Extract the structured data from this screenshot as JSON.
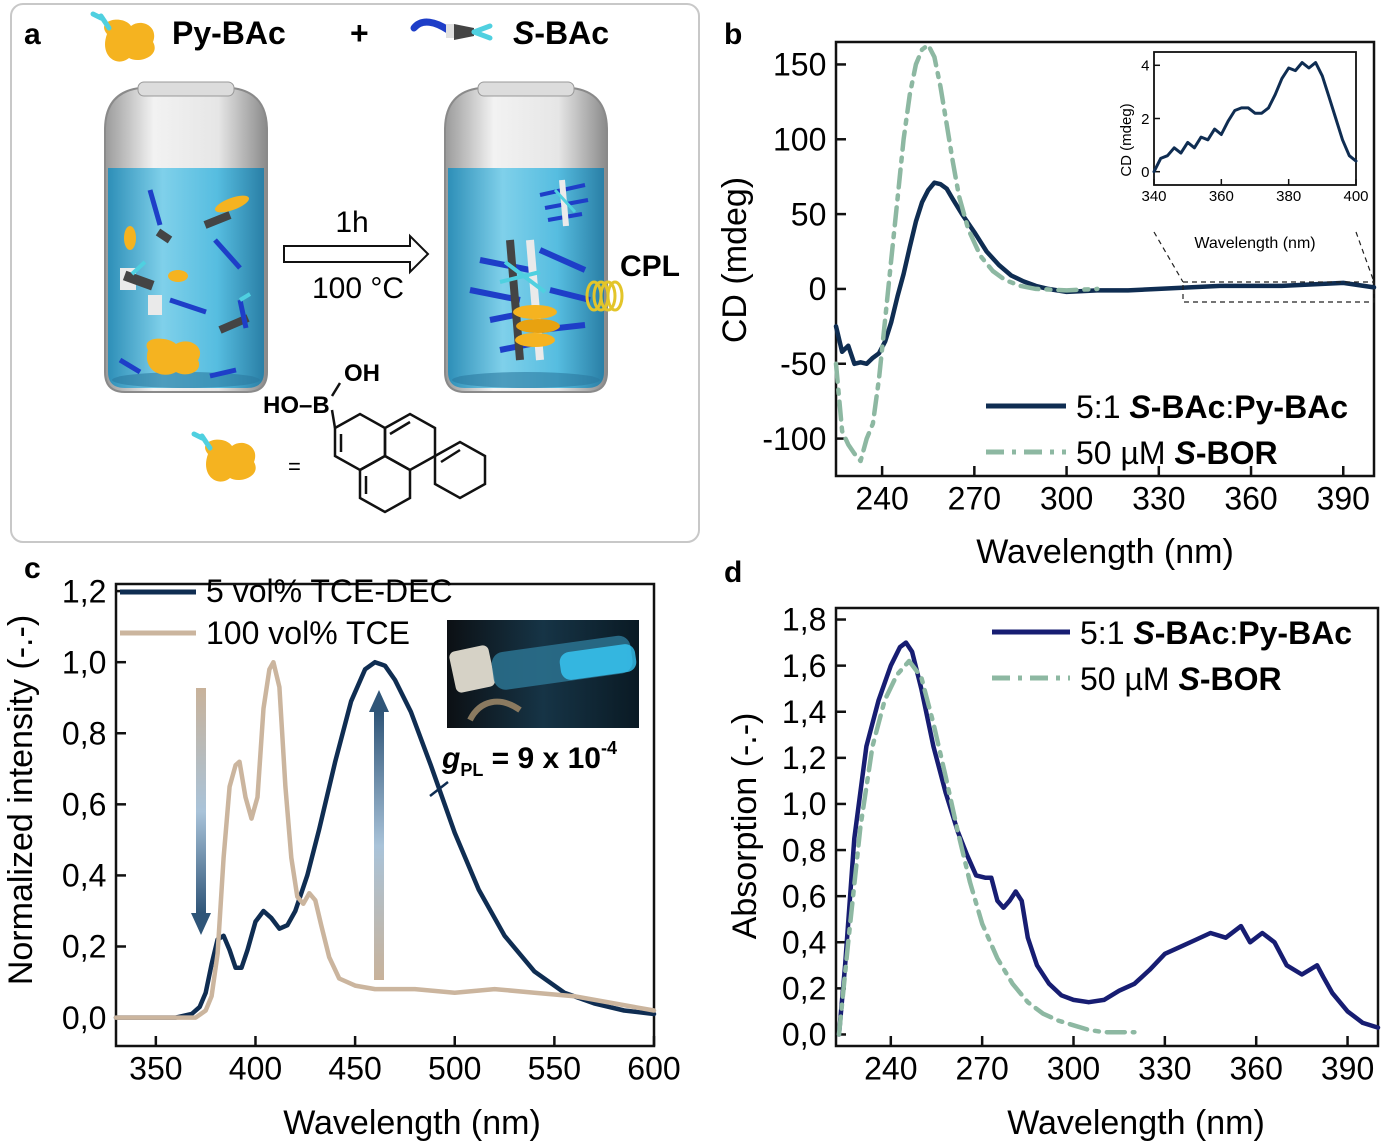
{
  "panel_a": {
    "letter": "a",
    "reagent1": "Py-BAc",
    "plus": "+",
    "reagent2_italic": "S",
    "reagent2_rest": "-BAc",
    "arrow_top": "1h",
    "arrow_bottom": "100 °C",
    "cpl": "CPL",
    "equals": "=",
    "oh": "OH",
    "hob": "HO–B",
    "colors": {
      "vial_liquid": "#3fb2d9",
      "pyrene_blob": "#f5b320",
      "box_border": "#c8c8c8"
    }
  },
  "chart_data": [
    {
      "id": "b",
      "letter": "b",
      "type": "line",
      "xlabel": "Wavelength (nm)",
      "ylabel": "CD (mdeg)",
      "xlim": [
        225,
        400
      ],
      "ylim": [
        -125,
        165
      ],
      "xticks": [
        240,
        270,
        300,
        330,
        360,
        390
      ],
      "yticks": [
        -100,
        -50,
        0,
        50,
        100,
        150
      ],
      "legend": "bottom-right",
      "series": [
        {
          "name_prefix": "5:1 ",
          "name_b1": "S",
          "name_b2": "-BAc",
          "name_sep": ":",
          "name_b3": "Py-BAc",
          "color": "#0f2d52",
          "style": "solid",
          "x": [
            225,
            227,
            229,
            231,
            233,
            235,
            237,
            239,
            241,
            243,
            245,
            247,
            249,
            251,
            253,
            255,
            257,
            259,
            261,
            263,
            266,
            270,
            274,
            278,
            282,
            286,
            290,
            294,
            300,
            310,
            320,
            330,
            340,
            350,
            360,
            370,
            380,
            390,
            400
          ],
          "y": [
            -25,
            -42,
            -38,
            -50,
            -49,
            -50,
            -46,
            -43,
            -35,
            -22,
            -5,
            10,
            28,
            45,
            58,
            66,
            71,
            70,
            67,
            60,
            50,
            38,
            25,
            16,
            9,
            5,
            2,
            0,
            -2,
            -1,
            -1,
            0,
            1,
            2,
            2,
            2,
            3,
            4,
            1
          ]
        },
        {
          "name_prefix": "50 µM ",
          "name_b1": "S",
          "name_b2": "-BOR",
          "name_sep": "",
          "name_b3": "",
          "color": "#8db8a2",
          "style": "dashdot",
          "x": [
            225,
            227,
            229,
            231,
            233,
            235,
            237,
            239,
            241,
            243,
            245,
            247,
            249,
            251,
            253,
            255,
            257,
            259,
            261,
            263,
            265,
            268,
            272,
            276,
            280,
            285,
            290,
            300,
            310
          ],
          "y": [
            -50,
            -95,
            -104,
            -110,
            -115,
            -100,
            -90,
            -60,
            -20,
            20,
            60,
            100,
            130,
            150,
            160,
            163,
            155,
            135,
            110,
            85,
            62,
            40,
            22,
            12,
            6,
            2,
            0,
            -1,
            0
          ]
        }
      ],
      "inset": {
        "xlabel": "Wavelength (nm)",
        "ylabel": "CD (mdeg)",
        "xlim": [
          340,
          400
        ],
        "ylim": [
          -0.5,
          4.5
        ],
        "xticks": [
          340,
          360,
          380,
          400
        ],
        "yticks": [
          0,
          2,
          4
        ],
        "x": [
          340,
          342,
          344,
          346,
          348,
          350,
          352,
          354,
          356,
          358,
          360,
          362,
          364,
          366,
          368,
          370,
          372,
          374,
          376,
          378,
          380,
          382,
          384,
          386,
          388,
          390,
          392,
          394,
          396,
          398,
          400
        ],
        "y": [
          0,
          0.5,
          0.6,
          0.9,
          0.7,
          1.1,
          0.9,
          1.3,
          1.2,
          1.6,
          1.4,
          1.9,
          2.3,
          2.4,
          2.4,
          2.2,
          2.2,
          2.4,
          2.9,
          3.5,
          3.9,
          3.8,
          4.1,
          3.9,
          4.1,
          3.6,
          2.8,
          2.0,
          1.2,
          0.6,
          0.4
        ]
      }
    },
    {
      "id": "c",
      "letter": "c",
      "type": "line",
      "xlabel": "Wavelength (nm)",
      "ylabel": "Normalized intensity (-.-)",
      "xlim": [
        330,
        600
      ],
      "ylim": [
        -0.08,
        1.22
      ],
      "xticks": [
        350,
        400,
        450,
        500,
        550,
        600
      ],
      "xtick_labels": [
        "350",
        "400",
        "450",
        "500",
        "550",
        "600"
      ],
      "yticks": [
        0,
        0.2,
        0.4,
        0.6,
        0.8,
        1.0,
        1.2
      ],
      "ytick_labels": [
        "0,0",
        "0,2",
        "0,4",
        "0,6",
        "0,8",
        "1,0",
        "1,2"
      ],
      "legend": "top-left",
      "annotation_g": "g",
      "annotation_sub": "PL",
      "annotation_rest": " = 9 x 10",
      "annotation_sup": "-4",
      "series": [
        {
          "name": "5 vol% TCE-DEC",
          "color": "#0f2d52",
          "x": [
            330,
            360,
            368,
            372,
            375,
            378,
            381,
            384,
            387,
            390,
            393,
            396,
            400,
            404,
            408,
            412,
            416,
            420,
            426,
            432,
            440,
            448,
            455,
            460,
            465,
            470,
            478,
            488,
            500,
            512,
            525,
            540,
            555,
            570,
            585,
            600
          ],
          "y": [
            0,
            0,
            0.01,
            0.03,
            0.07,
            0.15,
            0.22,
            0.23,
            0.19,
            0.14,
            0.14,
            0.19,
            0.27,
            0.3,
            0.28,
            0.25,
            0.26,
            0.3,
            0.4,
            0.53,
            0.72,
            0.89,
            0.98,
            1.0,
            0.99,
            0.95,
            0.86,
            0.71,
            0.52,
            0.36,
            0.23,
            0.13,
            0.07,
            0.04,
            0.02,
            0.01
          ]
        },
        {
          "name": "100 vol% TCE",
          "color": "#cbb59e",
          "x": [
            330,
            370,
            375,
            378,
            381,
            384,
            387,
            390,
            392,
            395,
            398,
            401,
            404,
            407,
            409,
            412,
            415,
            418,
            421,
            424,
            427,
            430,
            433,
            437,
            442,
            450,
            460,
            480,
            500,
            520,
            540,
            560,
            580,
            600
          ],
          "y": [
            0,
            0,
            0.02,
            0.06,
            0.18,
            0.45,
            0.65,
            0.71,
            0.72,
            0.62,
            0.56,
            0.62,
            0.87,
            0.98,
            1.0,
            0.93,
            0.65,
            0.45,
            0.34,
            0.32,
            0.35,
            0.33,
            0.26,
            0.17,
            0.11,
            0.09,
            0.08,
            0.08,
            0.07,
            0.08,
            0.07,
            0.06,
            0.04,
            0.02
          ]
        }
      ]
    },
    {
      "id": "d",
      "letter": "d",
      "type": "line",
      "xlabel": "Wavelength (nm)",
      "ylabel": "Absorption (-.-)",
      "xlim": [
        222,
        400
      ],
      "ylim": [
        -0.05,
        1.85
      ],
      "xticks": [
        240,
        270,
        300,
        330,
        360,
        390
      ],
      "yticks": [
        0,
        0.2,
        0.4,
        0.6,
        0.8,
        1.0,
        1.2,
        1.4,
        1.6,
        1.8
      ],
      "ytick_labels": [
        "0,0",
        "0,2",
        "0,4",
        "0,6",
        "0,8",
        "1,0",
        "1,2",
        "1,4",
        "1,6",
        "1,8"
      ],
      "legend": "top-right",
      "series": [
        {
          "name_prefix": "5:1 ",
          "name_b1": "S",
          "name_b2": "-BAc",
          "name_sep": ":",
          "name_b3": "Py-BAc",
          "color": "#171d72",
          "style": "solid",
          "x": [
            223,
            225,
            228,
            232,
            236,
            240,
            243,
            245,
            247,
            250,
            254,
            258,
            262,
            265,
            268,
            271,
            273,
            275,
            277,
            279,
            281,
            283,
            285,
            288,
            292,
            296,
            300,
            305,
            310,
            315,
            320,
            325,
            330,
            335,
            340,
            345,
            350,
            355,
            358,
            362,
            366,
            370,
            375,
            380,
            382,
            385,
            390,
            395,
            400
          ],
          "y": [
            0,
            0.3,
            0.85,
            1.25,
            1.45,
            1.6,
            1.68,
            1.7,
            1.66,
            1.5,
            1.25,
            1.05,
            0.88,
            0.78,
            0.69,
            0.68,
            0.68,
            0.58,
            0.55,
            0.58,
            0.62,
            0.58,
            0.42,
            0.3,
            0.22,
            0.17,
            0.15,
            0.14,
            0.15,
            0.19,
            0.22,
            0.28,
            0.35,
            0.38,
            0.41,
            0.44,
            0.42,
            0.47,
            0.4,
            0.44,
            0.4,
            0.3,
            0.26,
            0.3,
            0.25,
            0.18,
            0.1,
            0.05,
            0.03
          ]
        },
        {
          "name_prefix": "50 µM ",
          "name_b1": "S",
          "name_b2": "-BOR",
          "name_sep": "",
          "name_b3": "",
          "color": "#8db8a2",
          "style": "dashdot",
          "x": [
            223,
            226,
            230,
            234,
            238,
            242,
            246,
            250,
            254,
            258,
            262,
            266,
            270,
            275,
            280,
            285,
            290,
            295,
            300,
            305,
            310,
            315,
            320
          ],
          "y": [
            0,
            0.4,
            0.9,
            1.25,
            1.45,
            1.56,
            1.62,
            1.55,
            1.35,
            1.12,
            0.88,
            0.66,
            0.48,
            0.33,
            0.22,
            0.14,
            0.09,
            0.06,
            0.04,
            0.02,
            0.01,
            0.01,
            0.01
          ]
        }
      ]
    }
  ]
}
